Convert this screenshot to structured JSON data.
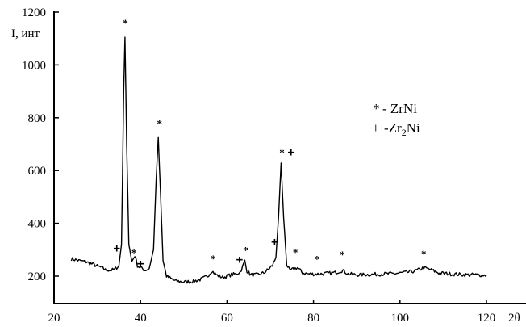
{
  "chart_data": {
    "type": "line",
    "ylabel": "I, инт",
    "xlabel": "2θ",
    "xlim": [
      20,
      130
    ],
    "ylim": [
      100,
      1200
    ],
    "x_ticks": [
      20,
      40,
      60,
      80,
      100,
      120
    ],
    "y_ticks": [
      200,
      400,
      600,
      800,
      1000,
      1200
    ],
    "grid": false,
    "legend_position": "right",
    "legend": [
      {
        "symbol": "*",
        "label": "- ZrNi"
      },
      {
        "symbol": "+",
        "label_parts": [
          "-Zr",
          "2",
          "Ni"
        ]
      }
    ],
    "series": [
      {
        "points": [
          [
            24,
            265
          ],
          [
            25,
            262
          ],
          [
            26,
            258
          ],
          [
            27,
            255
          ],
          [
            28,
            250
          ],
          [
            29,
            245
          ],
          [
            30,
            238
          ],
          [
            31,
            232
          ],
          [
            32,
            225
          ],
          [
            33,
            222
          ],
          [
            34,
            225
          ],
          [
            35,
            240
          ],
          [
            35.6,
            320
          ],
          [
            36.1,
            900
          ],
          [
            36.4,
            1105
          ],
          [
            36.8,
            700
          ],
          [
            37.3,
            320
          ],
          [
            38,
            255
          ],
          [
            38.7,
            278
          ],
          [
            39.3,
            240
          ],
          [
            40,
            232
          ],
          [
            41,
            222
          ],
          [
            42,
            228
          ],
          [
            43,
            300
          ],
          [
            43.6,
            560
          ],
          [
            44.1,
            725
          ],
          [
            44.6,
            520
          ],
          [
            45.2,
            260
          ],
          [
            46,
            200
          ],
          [
            48,
            182
          ],
          [
            50,
            178
          ],
          [
            52,
            180
          ],
          [
            54,
            188
          ],
          [
            55.5,
            200
          ],
          [
            56.5,
            220
          ],
          [
            57.5,
            205
          ],
          [
            59,
            195
          ],
          [
            60,
            200
          ],
          [
            61,
            205
          ],
          [
            62,
            208
          ],
          [
            63,
            215
          ],
          [
            63.6,
            235
          ],
          [
            64.1,
            258
          ],
          [
            64.6,
            220
          ],
          [
            65.5,
            205
          ],
          [
            67,
            205
          ],
          [
            68.5,
            212
          ],
          [
            69.5,
            225
          ],
          [
            70.5,
            240
          ],
          [
            71.3,
            270
          ],
          [
            71.9,
            420
          ],
          [
            72.5,
            628
          ],
          [
            73.1,
            420
          ],
          [
            73.8,
            245
          ],
          [
            74.5,
            220
          ],
          [
            75.5,
            228
          ],
          [
            76.3,
            232
          ],
          [
            77.5,
            212
          ],
          [
            79,
            208
          ],
          [
            81,
            208
          ],
          [
            83,
            210
          ],
          [
            85,
            213
          ],
          [
            86.8,
            222
          ],
          [
            88,
            208
          ],
          [
            90,
            205
          ],
          [
            93,
            206
          ],
          [
            96,
            208
          ],
          [
            99,
            210
          ],
          [
            102,
            215
          ],
          [
            104,
            222
          ],
          [
            105.5,
            232
          ],
          [
            107,
            225
          ],
          [
            109,
            212
          ],
          [
            112,
            208
          ],
          [
            115,
            205
          ],
          [
            118,
            205
          ],
          [
            120,
            203
          ]
        ]
      }
    ],
    "annotations": [
      {
        "text": "*",
        "kind": "ZrNi",
        "x": 36.5,
        "y": 1160
      },
      {
        "text": "*",
        "kind": "ZrNi",
        "x": 44.4,
        "y": 780
      },
      {
        "text": "*",
        "kind": "ZrNi",
        "x": 38.5,
        "y": 290
      },
      {
        "text": "*",
        "kind": "ZrNi",
        "x": 56.8,
        "y": 268
      },
      {
        "text": "*",
        "kind": "ZrNi",
        "x": 64.3,
        "y": 300
      },
      {
        "text": "*",
        "kind": "ZrNi",
        "x": 72.7,
        "y": 670
      },
      {
        "text": "*",
        "kind": "ZrNi",
        "x": 75.8,
        "y": 292
      },
      {
        "text": "*",
        "kind": "ZrNi",
        "x": 80.8,
        "y": 265
      },
      {
        "text": "*",
        "kind": "ZrNi",
        "x": 86.7,
        "y": 282
      },
      {
        "text": "*",
        "kind": "ZrNi",
        "x": 105.5,
        "y": 285
      },
      {
        "text": "+",
        "kind": "Zr2Ni",
        "x": 34.5,
        "y": 305
      },
      {
        "text": "+",
        "kind": "Zr2Ni",
        "x": 40.0,
        "y": 248
      },
      {
        "text": "+",
        "kind": "Zr2Ni",
        "x": 62.9,
        "y": 262
      },
      {
        "text": "+",
        "kind": "Zr2Ni",
        "x": 71.0,
        "y": 330
      },
      {
        "text": "+",
        "kind": "Zr2Ni",
        "x": 74.8,
        "y": 670
      }
    ]
  }
}
